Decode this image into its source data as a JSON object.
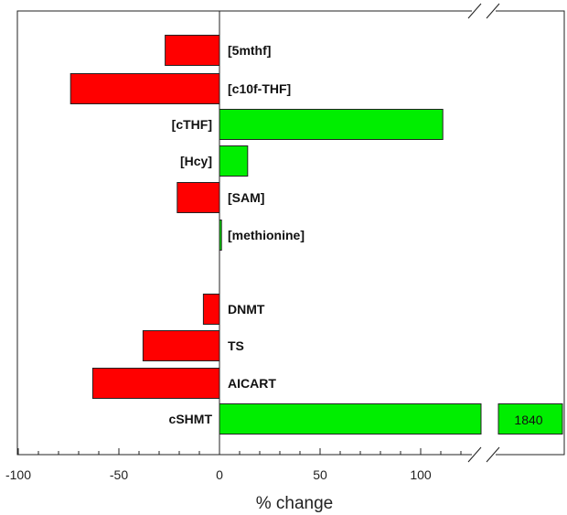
{
  "chart_data": {
    "type": "bar",
    "orientation": "horizontal",
    "title": "",
    "xlabel": "% change",
    "ylabel": "",
    "xlim": [
      -100,
      160
    ],
    "x_ticks": [
      {
        "value": -100,
        "label": "-100"
      },
      {
        "value": -50,
        "label": "-50"
      },
      {
        "value": 0,
        "label": "0"
      },
      {
        "value": 50,
        "label": "50"
      },
      {
        "value": 100,
        "label": "100"
      }
    ],
    "axis_break": {
      "after": 130,
      "description": "broken x-axis; last bar continues to 1840"
    },
    "grid": false,
    "legend": "none",
    "colors": {
      "increase": "#00ee00",
      "decrease": "#ff0000",
      "outline": "#222222"
    },
    "categories": [
      "[5mthf]",
      "[c10f-THF]",
      "[cTHF]",
      "[Hcy]",
      "[SAM]",
      "[methionine]",
      "DNMT",
      "TS",
      "AICART",
      "cSHMT"
    ],
    "values": [
      -27,
      -74,
      111,
      14,
      -21,
      1,
      -8,
      -38,
      -63,
      1840
    ],
    "data_labels": [
      {
        "category": "cSHMT",
        "text": "1840"
      }
    ]
  }
}
